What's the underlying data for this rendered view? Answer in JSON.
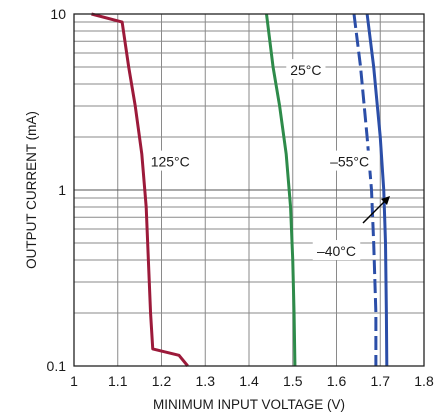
{
  "chart_data": {
    "type": "line",
    "title": "",
    "xlabel": "MINIMUM INPUT VOLTAGE (V)",
    "ylabel": "OUTPUT CURRENT (mA)",
    "x_scale": "linear",
    "y_scale": "log",
    "xlim": [
      1,
      1.8
    ],
    "ylim": [
      0.1,
      10
    ],
    "x_ticks": [
      "1",
      "1.1",
      "1.2",
      "1.3",
      "1.4",
      "1.5",
      "1.6",
      "1.7",
      "1.8"
    ],
    "y_ticks": [
      "0.1",
      "1",
      "10"
    ],
    "grid": true,
    "series": [
      {
        "name": "125°C",
        "color": "#9c1a3a",
        "dash": "solid",
        "points": [
          [
            1.04,
            10
          ],
          [
            1.11,
            9.0
          ],
          [
            1.125,
            5.0
          ],
          [
            1.14,
            3.0
          ],
          [
            1.155,
            1.6
          ],
          [
            1.165,
            0.8
          ],
          [
            1.17,
            0.4
          ],
          [
            1.175,
            0.2
          ],
          [
            1.18,
            0.125
          ],
          [
            1.24,
            0.115
          ],
          [
            1.26,
            0.1
          ]
        ]
      },
      {
        "name": "25°C",
        "color": "#2e8b4a",
        "dash": "solid",
        "points": [
          [
            1.44,
            10
          ],
          [
            1.455,
            5.0
          ],
          [
            1.47,
            3.0
          ],
          [
            1.485,
            1.6
          ],
          [
            1.495,
            0.8
          ],
          [
            1.5,
            0.4
          ],
          [
            1.503,
            0.2
          ],
          [
            1.505,
            0.1
          ]
        ]
      },
      {
        "name": "–55°C",
        "color": "#2b4ea8",
        "dash": "dashed",
        "points": [
          [
            1.64,
            10
          ],
          [
            1.655,
            5.0
          ],
          [
            1.67,
            2.0
          ],
          [
            1.68,
            1.0
          ],
          [
            1.685,
            0.5
          ],
          [
            1.69,
            0.2
          ],
          [
            1.69,
            0.1
          ]
        ]
      },
      {
        "name": "–40°C",
        "color": "#2b4ea8",
        "dash": "solid",
        "points": [
          [
            1.67,
            10
          ],
          [
            1.685,
            5.0
          ],
          [
            1.7,
            2.0
          ],
          [
            1.708,
            1.0
          ],
          [
            1.712,
            0.5
          ],
          [
            1.714,
            0.2
          ],
          [
            1.715,
            0.1
          ]
        ]
      }
    ],
    "annotations": [
      {
        "text": "125°C",
        "x": 1.22,
        "y": 1.45
      },
      {
        "text": "25°C",
        "x": 1.53,
        "y": 4.8
      },
      {
        "text": "–55°C",
        "x": 1.63,
        "y": 1.45
      },
      {
        "text": "–40°C",
        "x": 1.6,
        "y": 0.45
      }
    ]
  }
}
